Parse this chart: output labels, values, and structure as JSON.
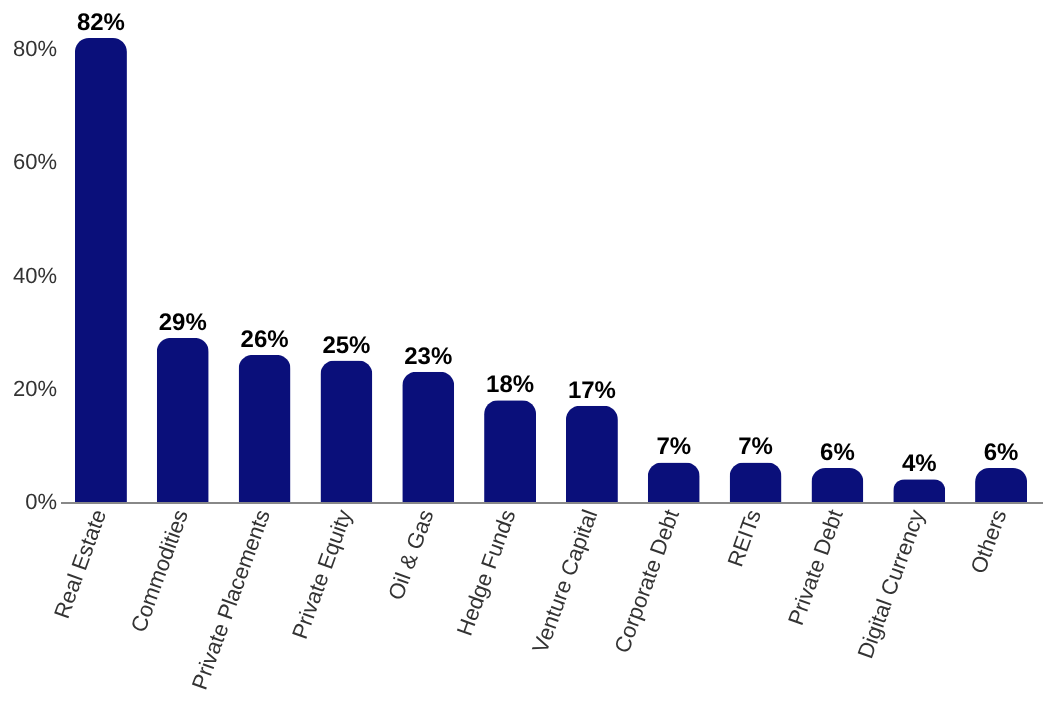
{
  "chart_data": {
    "type": "bar",
    "categories": [
      "Real Estate",
      "Commodities",
      "Private Placements",
      "Private Equity",
      "Oil & Gas",
      "Hedge Funds",
      "Venture Capital",
      "Corporate Debt",
      "REITs",
      "Private Debt",
      "Digital Currency",
      "Others"
    ],
    "values": [
      82,
      29,
      26,
      25,
      23,
      18,
      17,
      7,
      7,
      6,
      4,
      6
    ],
    "value_labels": [
      "82%",
      "29%",
      "26%",
      "25%",
      "23%",
      "18%",
      "17%",
      "7%",
      "7%",
      "6%",
      "4%",
      "6%"
    ],
    "color": "#0a0f7a",
    "ylim": [
      0,
      82
    ],
    "yticks": [
      {
        "value": 0,
        "label": "0%"
      },
      {
        "value": 20,
        "label": "20%"
      },
      {
        "value": 40,
        "label": "40%"
      },
      {
        "value": 60,
        "label": "60%"
      },
      {
        "value": 80,
        "label": "80%"
      }
    ],
    "grid": false
  }
}
